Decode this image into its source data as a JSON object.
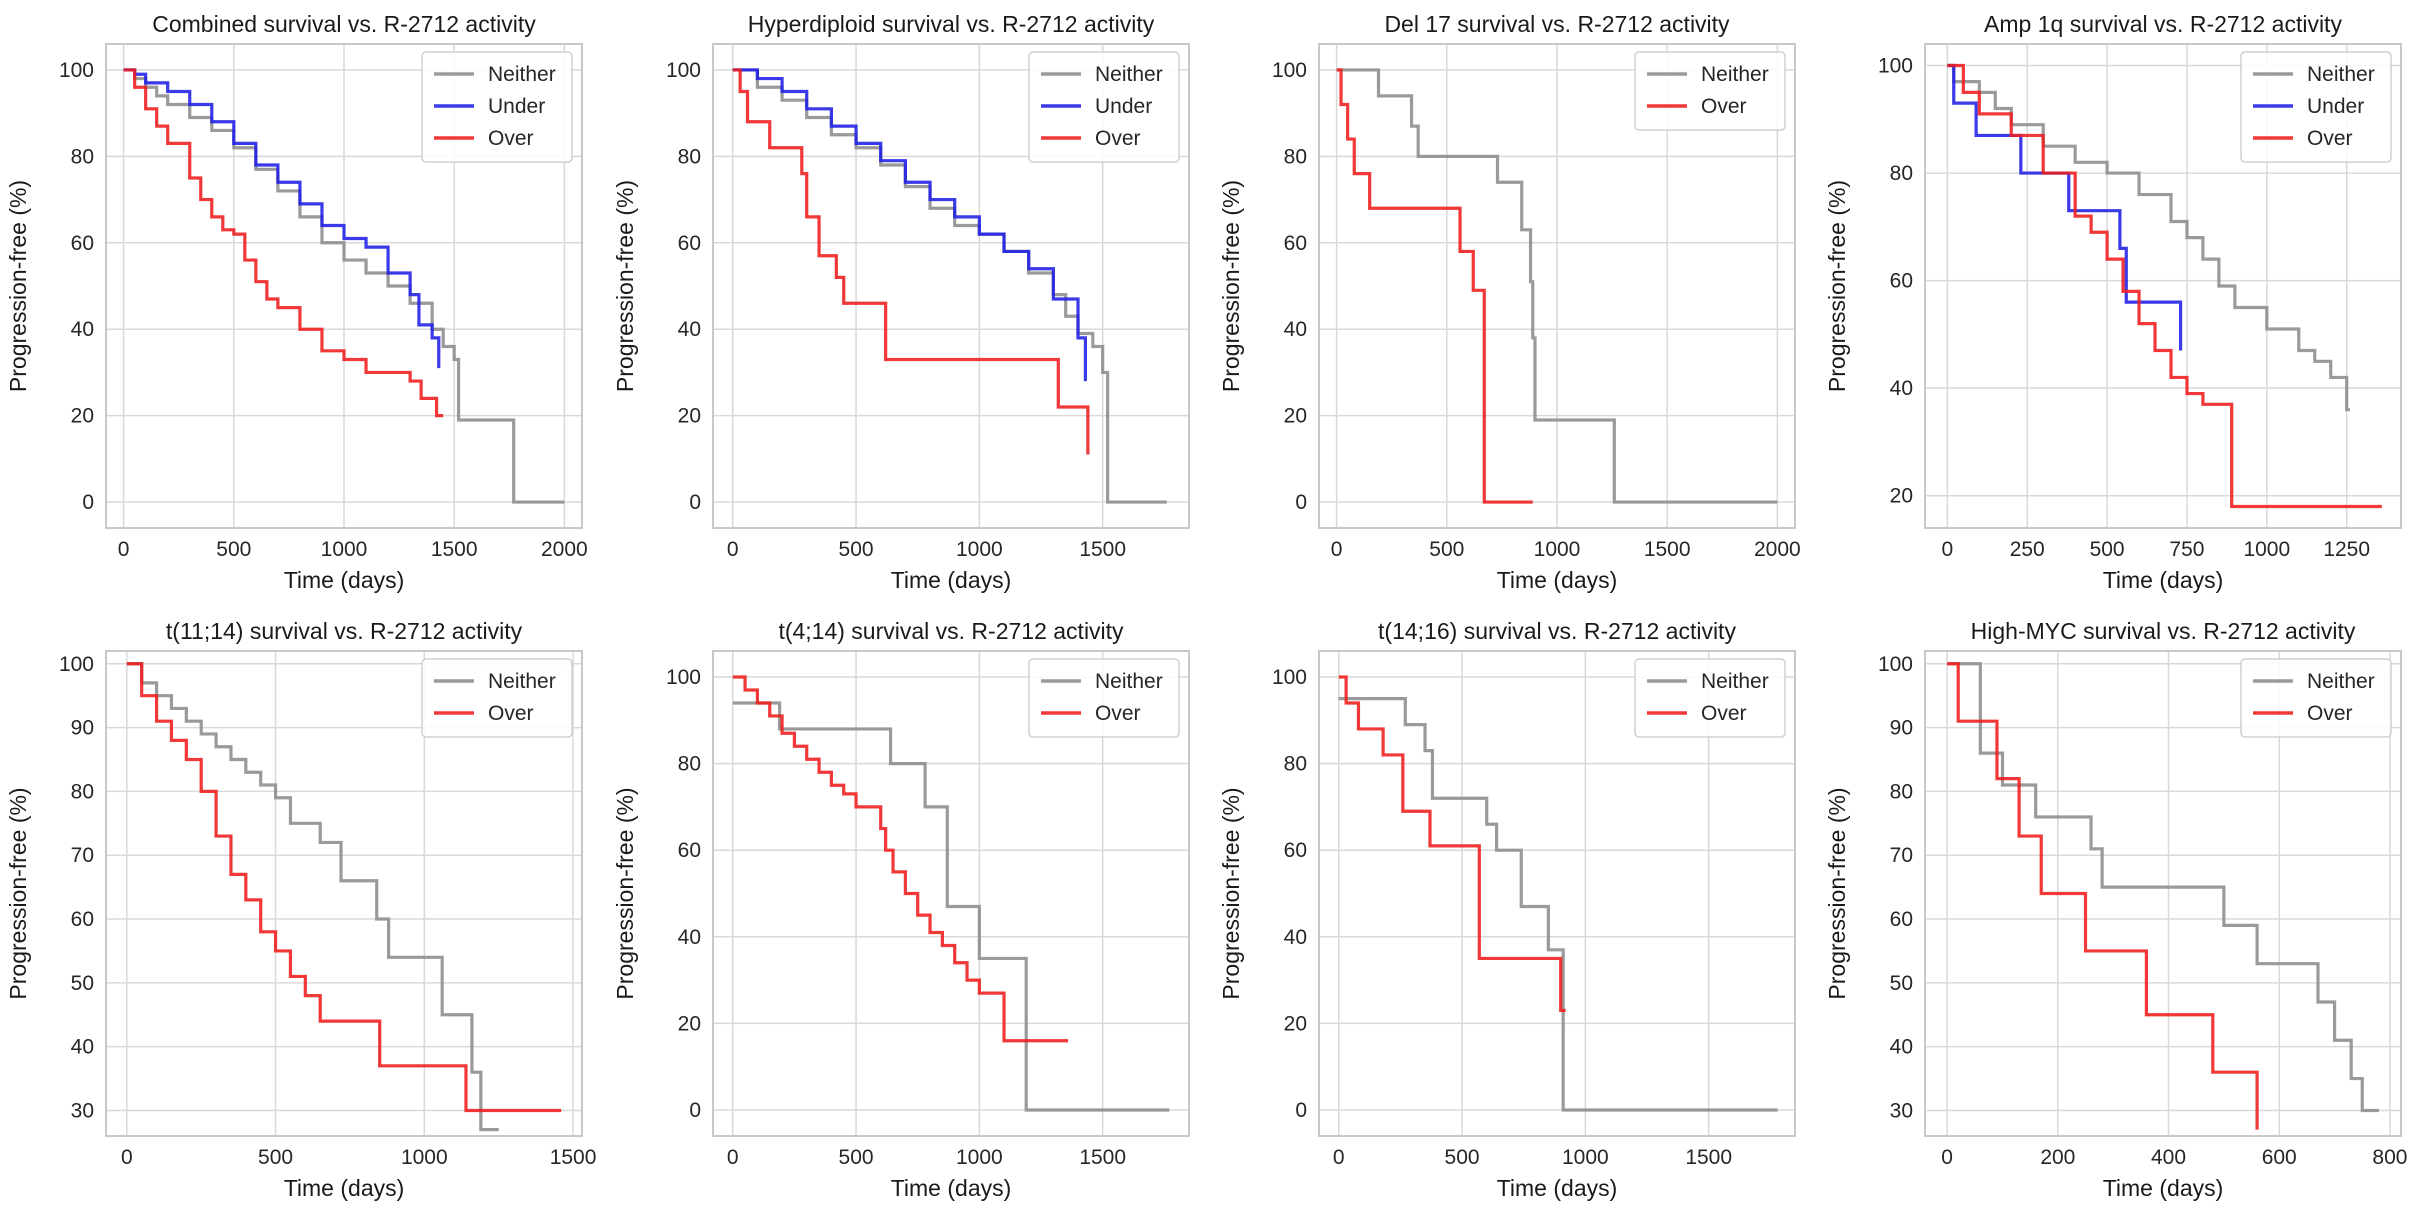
{
  "figure": {
    "xlabel": "Time (days)",
    "ylabel": "Progression-free (%)"
  },
  "colors": {
    "Neither": "#8c8c8c",
    "Under": "#1f1fe6",
    "Over": "#ee1c1c",
    "grid": "#d9d9d9",
    "frame": "#c8c8c8"
  },
  "chart_data": [
    {
      "type": "line",
      "step": true,
      "title": "Combined survival vs. R-2712 activity",
      "xlabel": "Time (days)",
      "ylabel": "Progression-free (%)",
      "xlim": [
        -80,
        2080
      ],
      "ylim": [
        -6,
        106
      ],
      "xticks": [
        0,
        500,
        1000,
        1500,
        2000
      ],
      "yticks": [
        0,
        20,
        40,
        60,
        80,
        100
      ],
      "legend": "top-right",
      "series": [
        {
          "name": "Neither",
          "x": [
            0,
            50,
            100,
            150,
            200,
            300,
            400,
            500,
            600,
            700,
            800,
            900,
            1000,
            1100,
            1200,
            1300,
            1400,
            1450,
            1500,
            1520,
            1750,
            1770,
            2000
          ],
          "y": [
            100,
            98,
            96,
            94,
            92,
            89,
            86,
            82,
            77,
            72,
            66,
            60,
            56,
            53,
            50,
            46,
            40,
            36,
            33,
            19,
            19,
            0,
            0
          ]
        },
        {
          "name": "Under",
          "x": [
            0,
            50,
            100,
            200,
            300,
            400,
            500,
            600,
            700,
            800,
            900,
            1000,
            1100,
            1200,
            1300,
            1340,
            1400,
            1430
          ],
          "y": [
            100,
            99,
            97,
            95,
            92,
            88,
            83,
            78,
            74,
            69,
            64,
            61,
            59,
            53,
            48,
            41,
            38,
            31
          ]
        },
        {
          "name": "Over",
          "x": [
            0,
            50,
            100,
            150,
            200,
            300,
            350,
            400,
            450,
            500,
            550,
            600,
            650,
            700,
            800,
            900,
            1000,
            1100,
            1300,
            1350,
            1420,
            1450
          ],
          "y": [
            100,
            96,
            91,
            87,
            83,
            75,
            70,
            66,
            63,
            62,
            56,
            51,
            47,
            45,
            40,
            35,
            33,
            30,
            28,
            24,
            20,
            20
          ]
        }
      ]
    },
    {
      "type": "line",
      "step": true,
      "title": "Hyperdiploid survival vs. R-2712 activity",
      "xlabel": "Time (days)",
      "ylabel": "Progression-free (%)",
      "xlim": [
        -80,
        1850
      ],
      "ylim": [
        -6,
        106
      ],
      "xticks": [
        0,
        500,
        1000,
        1500
      ],
      "yticks": [
        0,
        20,
        40,
        60,
        80,
        100
      ],
      "legend": "top-right",
      "series": [
        {
          "name": "Neither",
          "x": [
            0,
            100,
            200,
            300,
            400,
            500,
            600,
            700,
            800,
            900,
            1000,
            1100,
            1200,
            1300,
            1350,
            1400,
            1460,
            1500,
            1520,
            1760
          ],
          "y": [
            100,
            96,
            93,
            89,
            85,
            82,
            78,
            73,
            68,
            64,
            62,
            58,
            53,
            48,
            43,
            39,
            36,
            30,
            0,
            0
          ]
        },
        {
          "name": "Under",
          "x": [
            0,
            100,
            200,
            300,
            400,
            500,
            600,
            700,
            800,
            900,
            1000,
            1100,
            1200,
            1300,
            1400,
            1430
          ],
          "y": [
            100,
            98,
            95,
            91,
            87,
            83,
            79,
            74,
            70,
            66,
            62,
            58,
            54,
            47,
            38,
            28
          ]
        },
        {
          "name": "Over",
          "x": [
            0,
            30,
            60,
            150,
            280,
            300,
            350,
            420,
            450,
            620,
            1320,
            1440
          ],
          "y": [
            100,
            95,
            88,
            82,
            76,
            66,
            57,
            52,
            46,
            33,
            22,
            11
          ]
        }
      ]
    },
    {
      "type": "line",
      "step": true,
      "title": "Del 17 survival vs. R-2712 activity",
      "xlabel": "Time (days)",
      "ylabel": "Progression-free (%)",
      "xlim": [
        -80,
        2080
      ],
      "ylim": [
        -6,
        106
      ],
      "xticks": [
        0,
        500,
        1000,
        1500,
        2000
      ],
      "yticks": [
        0,
        20,
        40,
        60,
        80,
        100
      ],
      "legend": "top-right",
      "series": [
        {
          "name": "Neither",
          "x": [
            0,
            190,
            340,
            370,
            730,
            840,
            880,
            890,
            900,
            1260,
            2000
          ],
          "y": [
            100,
            94,
            87,
            80,
            74,
            63,
            51,
            38,
            19,
            0,
            0
          ]
        },
        {
          "name": "Over",
          "x": [
            0,
            20,
            50,
            80,
            150,
            560,
            620,
            670,
            890
          ],
          "y": [
            100,
            92,
            84,
            76,
            68,
            58,
            49,
            0,
            0
          ]
        }
      ]
    },
    {
      "type": "line",
      "step": true,
      "title": "Amp 1q survival vs. R-2712 activity",
      "xlabel": "Time (days)",
      "ylabel": "Progression-free (%)",
      "xlim": [
        -70,
        1420
      ],
      "ylim": [
        14,
        104
      ],
      "xticks": [
        0,
        250,
        500,
        750,
        1000,
        1250
      ],
      "yticks": [
        20,
        40,
        60,
        80,
        100
      ],
      "legend": "top-right",
      "series": [
        {
          "name": "Neither",
          "x": [
            0,
            20,
            100,
            150,
            200,
            300,
            400,
            500,
            600,
            700,
            750,
            800,
            850,
            900,
            1000,
            1100,
            1150,
            1200,
            1250,
            1260
          ],
          "y": [
            100,
            97,
            95,
            92,
            89,
            85,
            82,
            80,
            76,
            71,
            68,
            64,
            59,
            55,
            51,
            47,
            45,
            42,
            36,
            36
          ]
        },
        {
          "name": "Under",
          "x": [
            0,
            20,
            90,
            230,
            380,
            540,
            560,
            720,
            730
          ],
          "y": [
            100,
            93,
            87,
            80,
            73,
            66,
            56,
            56,
            47
          ]
        },
        {
          "name": "Over",
          "x": [
            0,
            50,
            100,
            200,
            300,
            400,
            450,
            500,
            550,
            600,
            650,
            700,
            750,
            800,
            890,
            1360
          ],
          "y": [
            100,
            95,
            91,
            87,
            80,
            72,
            69,
            64,
            58,
            52,
            47,
            42,
            39,
            37,
            18,
            18
          ]
        }
      ]
    },
    {
      "type": "line",
      "step": true,
      "title": "t(11;14) survival vs. R-2712 activity",
      "xlabel": "Time (days)",
      "ylabel": "Progression-free (%)",
      "xlim": [
        -70,
        1530
      ],
      "ylim": [
        26,
        102
      ],
      "xticks": [
        0,
        500,
        1000,
        1500
      ],
      "yticks": [
        30,
        40,
        50,
        60,
        70,
        80,
        90,
        100
      ],
      "legend": "top-right",
      "series": [
        {
          "name": "Neither",
          "x": [
            0,
            50,
            100,
            150,
            200,
            250,
            300,
            350,
            400,
            450,
            500,
            550,
            650,
            720,
            840,
            880,
            1060,
            1160,
            1190,
            1250
          ],
          "y": [
            100,
            97,
            95,
            93,
            91,
            89,
            87,
            85,
            83,
            81,
            79,
            75,
            72,
            66,
            60,
            54,
            45,
            36,
            27,
            27
          ]
        },
        {
          "name": "Over",
          "x": [
            0,
            50,
            100,
            150,
            200,
            250,
            300,
            350,
            400,
            450,
            500,
            550,
            600,
            650,
            850,
            1140,
            1460
          ],
          "y": [
            100,
            95,
            91,
            88,
            85,
            80,
            73,
            67,
            63,
            58,
            55,
            51,
            48,
            44,
            37,
            30,
            30
          ]
        }
      ]
    },
    {
      "type": "line",
      "step": true,
      "title": "t(4;14) survival vs. R-2712 activity",
      "xlabel": "Time (days)",
      "ylabel": "Progression-free (%)",
      "xlim": [
        -80,
        1850
      ],
      "ylim": [
        -6,
        106
      ],
      "xticks": [
        0,
        500,
        1000,
        1500
      ],
      "yticks": [
        0,
        20,
        40,
        60,
        80,
        100
      ],
      "legend": "top-right",
      "series": [
        {
          "name": "Neither",
          "x": [
            0,
            190,
            640,
            780,
            870,
            1000,
            1190,
            1770
          ],
          "y": [
            94,
            88,
            80,
            70,
            47,
            35,
            0,
            0
          ]
        },
        {
          "name": "Over",
          "x": [
            0,
            50,
            100,
            150,
            200,
            250,
            300,
            350,
            400,
            450,
            500,
            550,
            600,
            620,
            650,
            700,
            750,
            800,
            850,
            900,
            950,
            1000,
            1100,
            1360
          ],
          "y": [
            100,
            97,
            94,
            91,
            87,
            84,
            81,
            78,
            75,
            73,
            70,
            70,
            65,
            60,
            55,
            50,
            45,
            41,
            38,
            34,
            30,
            27,
            16,
            16
          ]
        }
      ]
    },
    {
      "type": "line",
      "step": true,
      "title": "t(14;16) survival vs. R-2712 activity",
      "xlabel": "Time (days)",
      "ylabel": "Progression-free (%)",
      "xlim": [
        -80,
        1850
      ],
      "ylim": [
        -6,
        106
      ],
      "xticks": [
        0,
        500,
        1000,
        1500
      ],
      "yticks": [
        0,
        20,
        40,
        60,
        80,
        100
      ],
      "legend": "top-right",
      "series": [
        {
          "name": "Neither",
          "x": [
            0,
            270,
            350,
            380,
            600,
            640,
            740,
            850,
            910,
            1780
          ],
          "y": [
            95,
            89,
            83,
            72,
            66,
            60,
            47,
            37,
            0,
            0
          ]
        },
        {
          "name": "Over",
          "x": [
            0,
            30,
            80,
            180,
            260,
            370,
            570,
            900,
            920
          ],
          "y": [
            100,
            94,
            88,
            82,
            69,
            61,
            35,
            23,
            23
          ]
        }
      ]
    },
    {
      "type": "line",
      "step": true,
      "title": "High-MYC survival vs. R-2712 activity",
      "xlabel": "Time (days)",
      "ylabel": "Progression-free (%)",
      "xlim": [
        -40,
        820
      ],
      "ylim": [
        26,
        102
      ],
      "xticks": [
        0,
        200,
        400,
        600,
        800
      ],
      "yticks": [
        30,
        40,
        50,
        60,
        70,
        80,
        90,
        100
      ],
      "legend": "top-right",
      "series": [
        {
          "name": "Neither",
          "x": [
            0,
            60,
            100,
            160,
            260,
            280,
            500,
            560,
            670,
            700,
            730,
            750,
            780
          ],
          "y": [
            100,
            86,
            81,
            76,
            71,
            65,
            59,
            53,
            47,
            41,
            35,
            30,
            30
          ]
        },
        {
          "name": "Over",
          "x": [
            0,
            20,
            90,
            130,
            170,
            250,
            360,
            480,
            560
          ],
          "y": [
            100,
            91,
            82,
            73,
            64,
            55,
            45,
            36,
            27
          ]
        }
      ]
    }
  ]
}
